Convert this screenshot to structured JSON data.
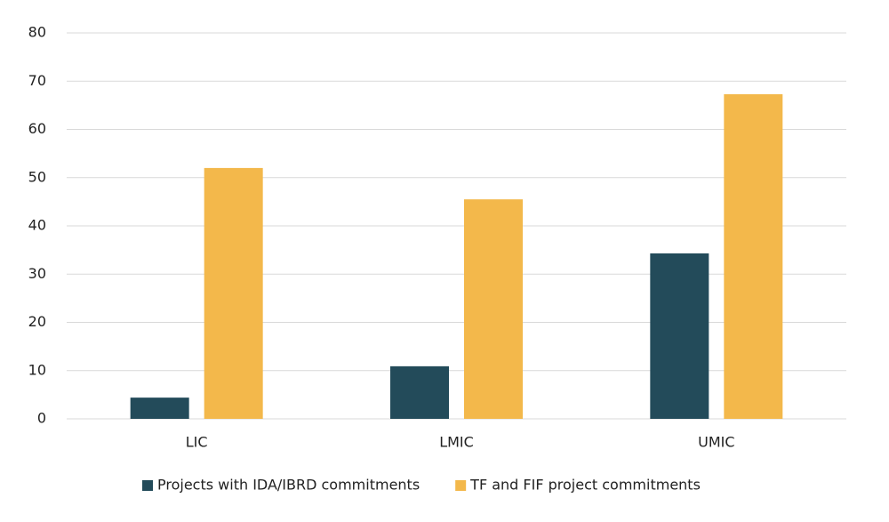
{
  "chart_data": {
    "type": "bar",
    "categories": [
      "LIC",
      "LMIC",
      "UMIC"
    ],
    "series": [
      {
        "name": "Projects with IDA/IBRD commitments",
        "color": "#234b5a",
        "values": [
          4.4,
          10.9,
          34.3
        ]
      },
      {
        "name": "TF and FIF project commitments",
        "color": "#f3b84b",
        "values": [
          52.0,
          45.5,
          67.3
        ]
      }
    ],
    "ylim": [
      0,
      80
    ],
    "yticks": [
      0,
      10,
      20,
      30,
      40,
      50,
      60,
      70,
      80
    ],
    "grid": true,
    "legend": "bottom"
  }
}
